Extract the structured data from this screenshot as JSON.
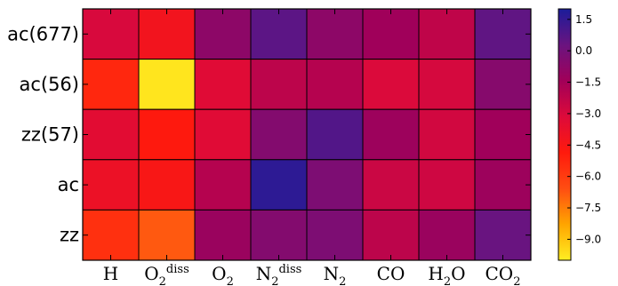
{
  "chart_data": {
    "type": "heatmap",
    "rows": [
      "ac(677)",
      "ac(56)",
      "zz(57)",
      "ac",
      "zz"
    ],
    "columns": [
      {
        "base": "H",
        "sub": "",
        "sup": ""
      },
      {
        "base": "O",
        "sub": "2",
        "sup": "diss"
      },
      {
        "base": "O",
        "sub": "2",
        "sup": ""
      },
      {
        "base": "N",
        "sub": "2",
        "sup": "diss"
      },
      {
        "base": "N",
        "sub": "2",
        "sup": ""
      },
      {
        "base": "CO",
        "sub": "",
        "sup": ""
      },
      {
        "base": "H",
        "sub": "2",
        "sup": "",
        "tail": "O"
      },
      {
        "base": "CO",
        "sub": "2",
        "sup": ""
      }
    ],
    "values": [
      [
        -3.0,
        -4.2,
        -0.8,
        0.6,
        -0.8,
        -1.4,
        -2.3,
        0.5
      ],
      [
        -5.3,
        -9.8,
        -3.3,
        -2.2,
        -2.0,
        -3.1,
        -2.9,
        -0.6
      ],
      [
        -3.4,
        -4.8,
        -3.3,
        -0.5,
        0.8,
        -1.3,
        -2.8,
        -1.4
      ],
      [
        -3.9,
        -4.5,
        -2.0,
        1.6,
        -0.3,
        -2.6,
        -2.7,
        -1.3
      ],
      [
        -5.6,
        -6.8,
        -1.2,
        -0.5,
        -0.3,
        -2.2,
        -1.2,
        0.3
      ]
    ],
    "colorbar": {
      "min": -10.0,
      "max": 2.0,
      "ticks": [
        "1.5",
        "0.0",
        "−1.5",
        "−3.0",
        "−4.5",
        "−6.0",
        "−7.5",
        "−9.0"
      ],
      "tick_values": [
        1.5,
        0.0,
        -1.5,
        -3.0,
        -4.5,
        -6.0,
        -7.5,
        -9.0
      ],
      "colormap": [
        "#ffee22",
        "#ffa500",
        "#ff4d12",
        "#ff1a0d",
        "#dd0a3a",
        "#a10059",
        "#6a1480",
        "#1b1c9a"
      ]
    },
    "title": "",
    "xlabel": "",
    "ylabel": ""
  }
}
